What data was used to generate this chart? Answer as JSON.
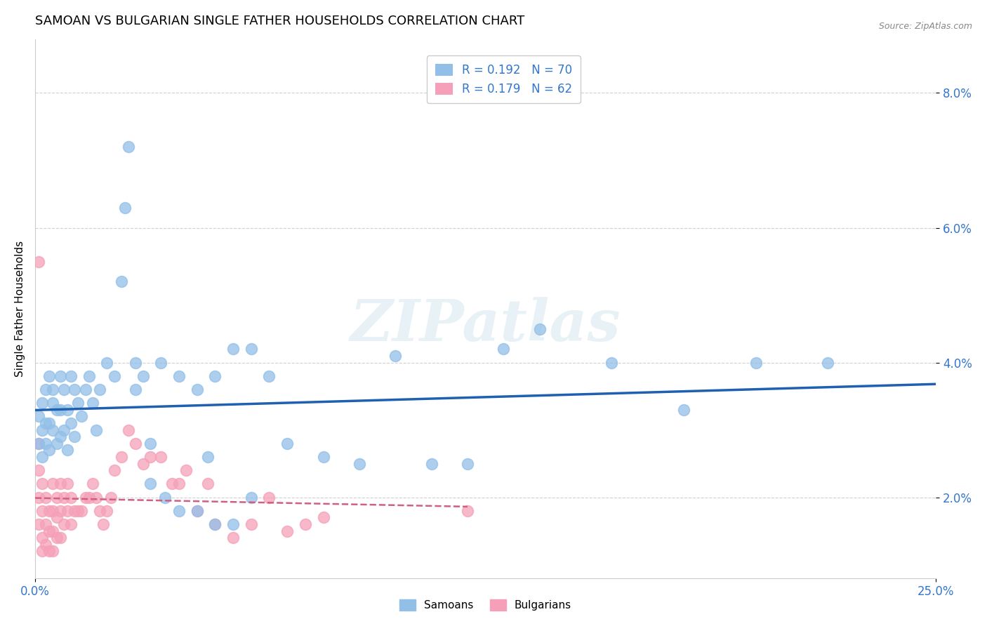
{
  "title": "SAMOAN VS BULGARIAN SINGLE FATHER HOUSEHOLDS CORRELATION CHART",
  "source": "Source: ZipAtlas.com",
  "ylabel": "Single Father Households",
  "ytick_labels": [
    "2.0%",
    "4.0%",
    "6.0%",
    "8.0%"
  ],
  "ytick_values": [
    0.02,
    0.04,
    0.06,
    0.08
  ],
  "xlim": [
    0.0,
    0.25
  ],
  "ylim": [
    0.008,
    0.088
  ],
  "watermark": "ZIPatlas",
  "samoan_color": "#92bfe8",
  "bulgarian_color": "#f5a0b8",
  "samoan_line_color": "#2060b0",
  "bulgarian_line_color": "#d06080",
  "background_color": "#ffffff",
  "grid_color": "#cccccc",
  "tick_color": "#3377cc",
  "title_fontsize": 13,
  "axis_label_fontsize": 11,
  "tick_fontsize": 12,
  "legend_r1": "0.192",
  "legend_n1": "70",
  "legend_r2": "0.179",
  "legend_n2": "62",
  "samoan_x": [
    0.001,
    0.001,
    0.002,
    0.002,
    0.002,
    0.003,
    0.003,
    0.003,
    0.004,
    0.004,
    0.004,
    0.005,
    0.005,
    0.005,
    0.006,
    0.006,
    0.007,
    0.007,
    0.007,
    0.008,
    0.008,
    0.009,
    0.009,
    0.01,
    0.01,
    0.011,
    0.011,
    0.012,
    0.013,
    0.014,
    0.015,
    0.016,
    0.017,
    0.018,
    0.02,
    0.022,
    0.025,
    0.028,
    0.03,
    0.032,
    0.035,
    0.04,
    0.045,
    0.048,
    0.05,
    0.055,
    0.06,
    0.065,
    0.07,
    0.08,
    0.09,
    0.1,
    0.11,
    0.12,
    0.13,
    0.14,
    0.16,
    0.18,
    0.2,
    0.22,
    0.024,
    0.026,
    0.028,
    0.032,
    0.036,
    0.04,
    0.045,
    0.05,
    0.055,
    0.06
  ],
  "samoan_y": [
    0.028,
    0.032,
    0.026,
    0.03,
    0.034,
    0.028,
    0.031,
    0.036,
    0.027,
    0.031,
    0.038,
    0.03,
    0.034,
    0.036,
    0.028,
    0.033,
    0.029,
    0.033,
    0.038,
    0.03,
    0.036,
    0.027,
    0.033,
    0.031,
    0.038,
    0.029,
    0.036,
    0.034,
    0.032,
    0.036,
    0.038,
    0.034,
    0.03,
    0.036,
    0.04,
    0.038,
    0.063,
    0.036,
    0.038,
    0.028,
    0.04,
    0.038,
    0.036,
    0.026,
    0.038,
    0.042,
    0.042,
    0.038,
    0.028,
    0.026,
    0.025,
    0.041,
    0.025,
    0.025,
    0.042,
    0.045,
    0.04,
    0.033,
    0.04,
    0.04,
    0.052,
    0.072,
    0.04,
    0.022,
    0.02,
    0.018,
    0.018,
    0.016,
    0.016,
    0.02
  ],
  "bulgarian_x": [
    0.001,
    0.001,
    0.001,
    0.001,
    0.002,
    0.002,
    0.002,
    0.002,
    0.003,
    0.003,
    0.003,
    0.004,
    0.004,
    0.004,
    0.005,
    0.005,
    0.005,
    0.005,
    0.006,
    0.006,
    0.006,
    0.007,
    0.007,
    0.007,
    0.008,
    0.008,
    0.009,
    0.009,
    0.01,
    0.01,
    0.011,
    0.012,
    0.013,
    0.014,
    0.015,
    0.016,
    0.017,
    0.018,
    0.019,
    0.02,
    0.021,
    0.022,
    0.024,
    0.026,
    0.028,
    0.03,
    0.032,
    0.035,
    0.038,
    0.04,
    0.042,
    0.045,
    0.048,
    0.05,
    0.055,
    0.06,
    0.065,
    0.07,
    0.075,
    0.08,
    0.12,
    0.001
  ],
  "bulgarian_y": [
    0.028,
    0.024,
    0.02,
    0.016,
    0.022,
    0.018,
    0.014,
    0.012,
    0.02,
    0.016,
    0.013,
    0.018,
    0.015,
    0.012,
    0.022,
    0.018,
    0.015,
    0.012,
    0.02,
    0.017,
    0.014,
    0.022,
    0.018,
    0.014,
    0.02,
    0.016,
    0.022,
    0.018,
    0.02,
    0.016,
    0.018,
    0.018,
    0.018,
    0.02,
    0.02,
    0.022,
    0.02,
    0.018,
    0.016,
    0.018,
    0.02,
    0.024,
    0.026,
    0.03,
    0.028,
    0.025,
    0.026,
    0.026,
    0.022,
    0.022,
    0.024,
    0.018,
    0.022,
    0.016,
    0.014,
    0.016,
    0.02,
    0.015,
    0.016,
    0.017,
    0.018,
    0.055
  ]
}
